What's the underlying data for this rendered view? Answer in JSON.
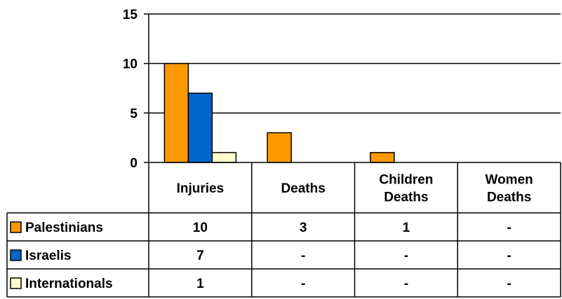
{
  "chart_data": {
    "type": "bar",
    "title": "",
    "xlabel": "",
    "ylabel": "",
    "ylim": [
      0,
      15
    ],
    "yticks": [
      "0",
      "5",
      "10",
      "15"
    ],
    "grid": true,
    "legend": "table-left",
    "categories": [
      [
        "Injuries"
      ],
      [
        "Deaths"
      ],
      [
        "Children",
        "Deaths"
      ],
      [
        "Women",
        "Deaths"
      ]
    ],
    "series": [
      {
        "name": "Palestinians",
        "color": "#FF9900",
        "values": [
          10,
          3,
          1,
          0
        ],
        "table": [
          "10",
          "3",
          "1",
          "-"
        ]
      },
      {
        "name": "Israelis",
        "color": "#0066CC",
        "values": [
          7,
          0,
          0,
          0
        ],
        "table": [
          "7",
          "-",
          "-",
          "-"
        ]
      },
      {
        "name": "Internationals",
        "color": "#FFFFCC",
        "values": [
          1,
          0,
          0,
          0
        ],
        "table": [
          "1",
          "-",
          "-",
          "-"
        ]
      }
    ]
  }
}
